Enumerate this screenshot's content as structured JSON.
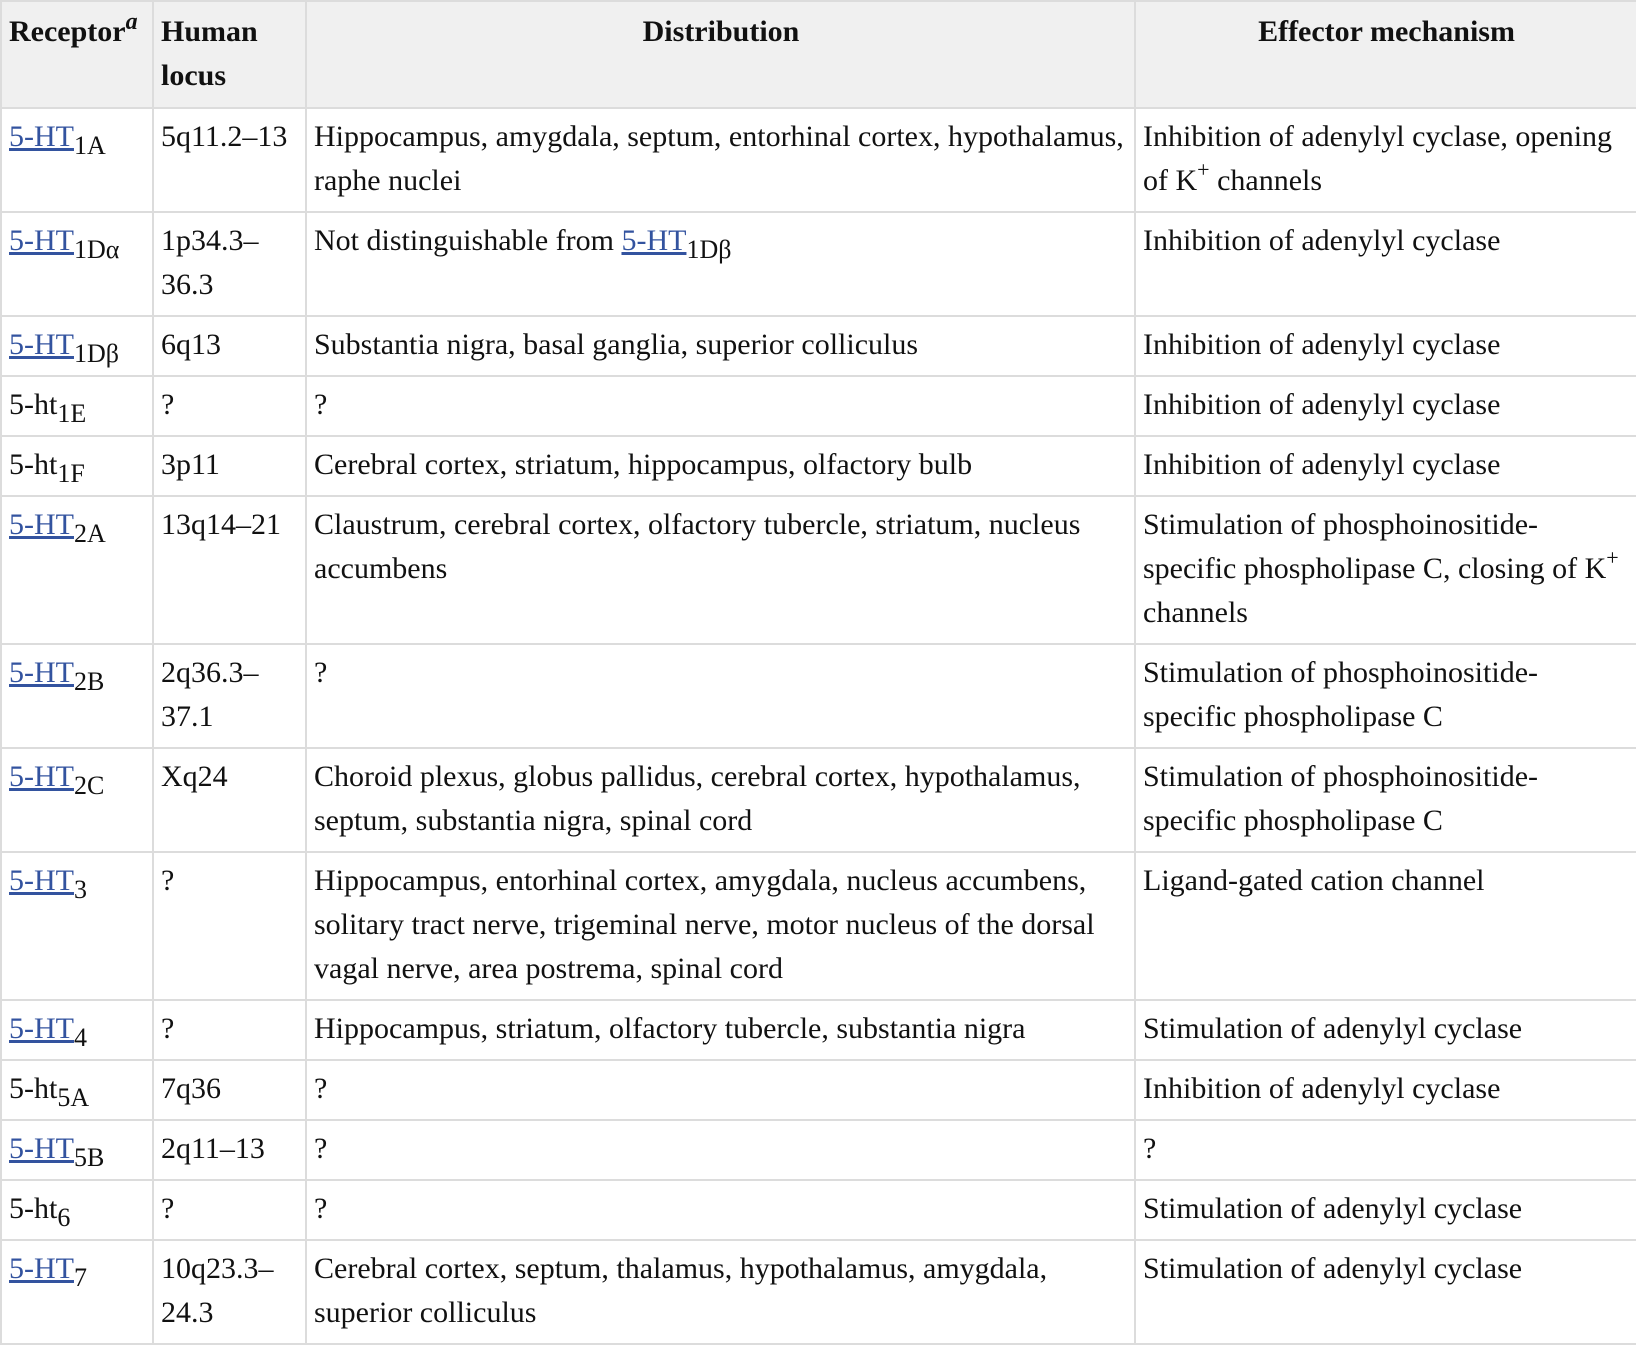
{
  "table": {
    "headers": {
      "receptor": "Receptor",
      "receptor_footnote": "a",
      "locus": "Human locus",
      "distribution": "Distribution",
      "effector": "Effector mechanism"
    },
    "rows": [
      {
        "name": "5-HT",
        "sub": "1A",
        "linked": true,
        "locus": "5q11.2–13",
        "distribution": "Hippocampus, amygdala, septum, entorhinal cortex, hypothalamus, raphe nuclei",
        "effector_pre": "Inhibition of adenylyl cyclase, opening of K",
        "effector_sup": "+",
        "effector_post": " channels"
      },
      {
        "name": "5-HT",
        "sub": "1Dα",
        "linked": true,
        "locus": "1p34.3–36.3",
        "dist_pre": "Not distinguishable from ",
        "dist_link": "5-HT",
        "dist_link_sub": "1Dβ",
        "effector": "Inhibition of adenylyl cyclase"
      },
      {
        "name": "5-HT",
        "sub": "1Dβ",
        "linked": true,
        "locus": "6q13",
        "distribution": "Substantia nigra, basal ganglia, superior colliculus",
        "effector": "Inhibition of adenylyl cyclase"
      },
      {
        "name": "5-ht",
        "sub": "1E",
        "linked": false,
        "locus": "?",
        "distribution": "?",
        "effector": "Inhibition of adenylyl cyclase"
      },
      {
        "name": "5-ht",
        "sub": "1F",
        "linked": false,
        "locus": "3p11",
        "distribution": "Cerebral cortex, striatum, hippocampus, olfactory bulb",
        "effector": "Inhibition of adenylyl cyclase"
      },
      {
        "name": "5-HT",
        "sub": "2A",
        "linked": true,
        "locus": "13q14–21",
        "distribution": "Claustrum, cerebral cortex, olfactory tubercle, striatum, nucleus accumbens",
        "effector_pre": "Stimulation of phosphoinositide-specific phospholipase C, closing of K",
        "effector_sup": "+",
        "effector_post": " channels"
      },
      {
        "name": "5-HT",
        "sub": "2B",
        "linked": true,
        "locus": "2q36.3–37.1",
        "distribution": "?",
        "effector": "Stimulation of phosphoinositide-specific phospholipase C"
      },
      {
        "name": "5-HT",
        "sub": "2C",
        "linked": true,
        "locus": "Xq24",
        "distribution": "Choroid plexus, globus pallidus, cerebral cortex, hypothalamus, septum, substantia nigra, spinal cord",
        "effector": "Stimulation of phosphoinositide-specific phospholipase C"
      },
      {
        "name": "5-HT",
        "sub": "3",
        "linked": true,
        "locus": "?",
        "distribution": "Hippocampus, entorhinal cortex, amygdala, nucleus accumbens, solitary tract nerve, trigeminal nerve, motor nucleus of the dorsal vagal nerve, area postrema, spinal cord",
        "effector": "Ligand-gated cation channel"
      },
      {
        "name": "5-HT",
        "sub": "4",
        "linked": true,
        "locus": "?",
        "distribution": "Hippocampus, striatum, olfactory tubercle, substantia nigra",
        "effector": "Stimulation of adenylyl cyclase"
      },
      {
        "name": "5-ht",
        "sub": "5A",
        "linked": false,
        "locus": "7q36",
        "distribution": "?",
        "effector": "Inhibition of adenylyl cyclase"
      },
      {
        "name": "5-HT",
        "sub": "5B",
        "linked": true,
        "locus": "2q11–13",
        "distribution": "?",
        "effector": "?"
      },
      {
        "name": "5-ht",
        "sub": "6",
        "linked": false,
        "locus": "?",
        "distribution": "?",
        "effector": "Stimulation of adenylyl cyclase"
      },
      {
        "name": "5-HT",
        "sub": "7",
        "linked": true,
        "locus": "10q23.3–24.3",
        "distribution": "Cerebral cortex, septum, thalamus, hypothalamus, amygdala, superior colliculus",
        "effector": "Stimulation of adenylyl cyclase"
      }
    ]
  }
}
